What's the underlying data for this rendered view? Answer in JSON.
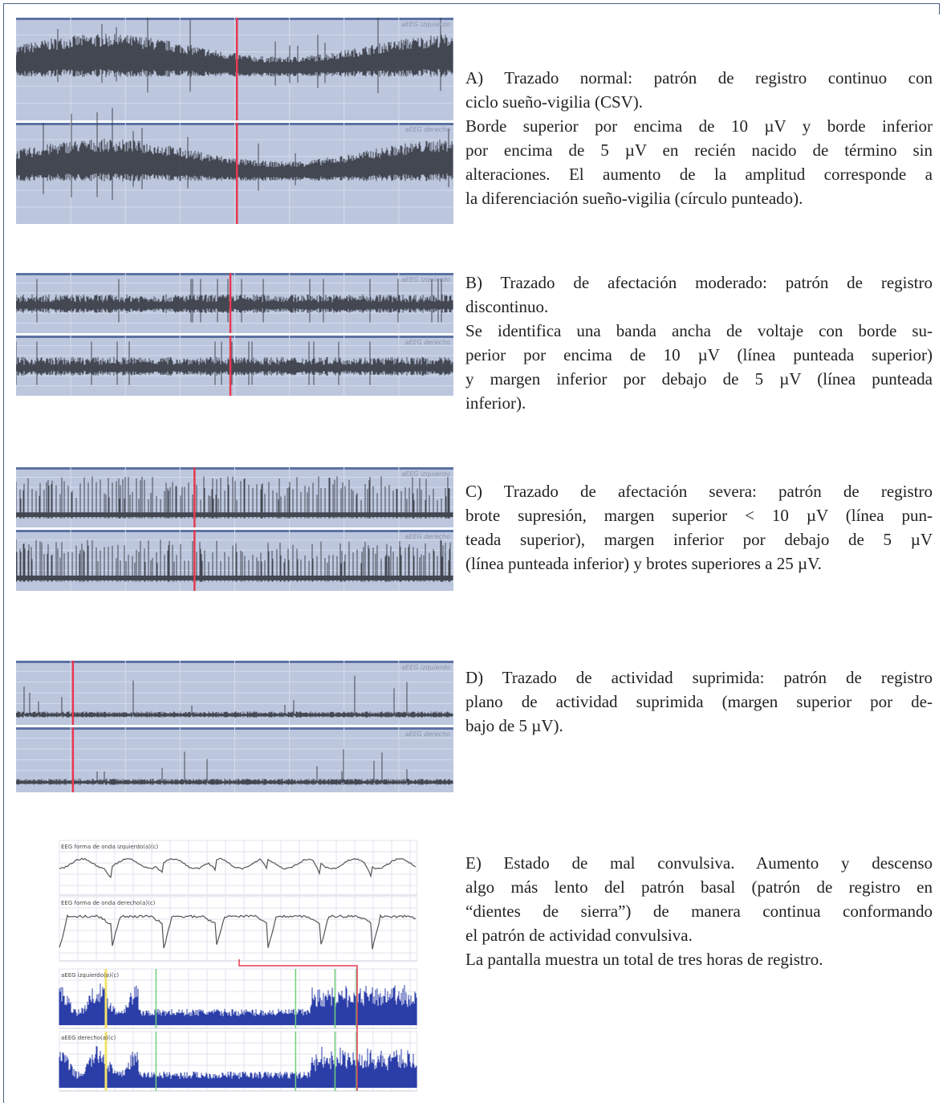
{
  "panels": [
    {
      "image": {
        "labels": [
          "aEEG izquierdo",
          "aEEG derecho"
        ]
      },
      "paragraphs": [
        {
          "lines": [
            "A) Trazado normal: patrón de registro continuo con",
            "ciclo sueño-vigilia (CSV)."
          ]
        },
        {
          "lines": [
            "Borde superior por encima de 10 µV y borde inferior",
            "por encima de 5 µV en recién nacido de término sin",
            "alteraciones. El aumento de la amplitud corresponde a",
            "la diferenciación sueño-vigilia (círculo punteado)."
          ]
        }
      ]
    },
    {
      "image": {
        "labels": [
          "aEEG izquierdo",
          "aEEG derecho"
        ]
      },
      "paragraphs": [
        {
          "lines": [
            "B) Trazado de afectación moderado: patrón de registro",
            "discontinuo."
          ]
        },
        {
          "lines": [
            "Se identifica una banda ancha de voltaje con borde su-",
            "perior por encima de 10 µV (línea punteada superior)",
            "y margen inferior por debajo de 5 µV (línea punteada",
            "inferior)."
          ]
        }
      ]
    },
    {
      "image": {
        "labels": [
          "aEEG izquierdo",
          "aEEG derecho"
        ]
      },
      "paragraphs": [
        {
          "lines": [
            "C) Trazado de afectación severa: patrón de registro",
            "brote supresión, margen superior < 10 µV (línea pun-",
            "teada superior), margen inferior por debajo de 5 µV",
            "(línea punteada inferior) y brotes superiores a 25 µV."
          ]
        }
      ]
    },
    {
      "image": {
        "labels": [
          "aEEG izquierdo",
          "aEEG derecho"
        ]
      },
      "paragraphs": [
        {
          "lines": [
            "D) Trazado de actividad suprimida: patrón de registro",
            "plano de actividad suprimida (margen superior por de-",
            "bajo de 5 µV)."
          ]
        }
      ]
    },
    {
      "image": {
        "labels": [
          "EEG forma de onda izquierdo(a)(c)",
          "EEG forma de onda derecho(a)(c)",
          "aEEG izquierdo(a)(c)",
          "aEEG derecho(a)(c)"
        ]
      },
      "paragraphs": [
        {
          "lines": [
            "E) Estado de mal convulsiva. Aumento y descenso",
            "algo más lento del patrón basal (patrón de registro en",
            "“dientes de sierra”) de manera continua conformando",
            "el patrón de actividad convulsiva."
          ]
        },
        {
          "lines": [
            "La pantalla muestra un total de tres horas de registro."
          ]
        }
      ]
    }
  ]
}
